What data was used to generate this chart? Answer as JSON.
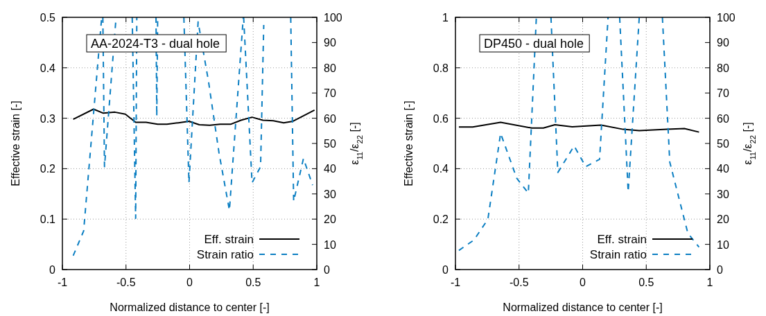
{
  "chart_data": [
    {
      "type": "line",
      "title": "AA-2024-T3 - dual hole",
      "xlabel": "Normalized distance to center [-]",
      "ylabel": "Effective strain [-]",
      "y2label": "ε$_{11}$/ε$_{22}$ [-]",
      "xlim": [
        -1,
        1
      ],
      "xticks": [
        -1,
        -0.5,
        0,
        0.5,
        1
      ],
      "ylim": [
        0,
        0.5
      ],
      "yticks": [
        0,
        0.1,
        0.2,
        0.3,
        0.4,
        0.5
      ],
      "y2lim": [
        0,
        100
      ],
      "y2ticks": [
        0,
        10,
        20,
        30,
        40,
        50,
        60,
        70,
        80,
        90,
        100
      ],
      "grid": true,
      "legend": "bottom right",
      "series": [
        {
          "name": "Eff. strain",
          "color": "#000000",
          "line_style": "solid",
          "x": [
            -0.915,
            -0.755,
            -0.678,
            -0.587,
            -0.505,
            -0.424,
            -0.342,
            -0.251,
            -0.178,
            -0.087,
            -0.005,
            0.076,
            0.158,
            0.24,
            0.322,
            0.404,
            0.491,
            0.576,
            0.658,
            0.74,
            0.813,
            0.982
          ],
          "values": [
            0.298,
            0.318,
            0.31,
            0.312,
            0.308,
            0.292,
            0.292,
            0.288,
            0.288,
            0.291,
            0.294,
            0.287,
            0.286,
            0.288,
            0.288,
            0.296,
            0.302,
            0.296,
            0.295,
            0.291,
            0.294,
            0.316
          ]
        },
        {
          "name": "Strain ratio",
          "color": "#0a7ec2",
          "line_style": "dashed",
          "axis": "y2",
          "x": [
            -0.915,
            -0.833,
            -0.691,
            -0.686,
            -0.682,
            -0.669,
            -0.578,
            -0.51,
            -0.451,
            -0.424,
            -0.415,
            -0.34,
            -0.264,
            -0.258,
            -0.251,
            -0.15,
            -0.045,
            -0.005,
            0.067,
            0.149,
            0.231,
            0.313,
            0.422,
            0.423,
            0.425,
            0.491,
            0.558,
            0.583,
            0.7,
            0.795,
            0.818,
            0.895,
            0.967
          ],
          "values": [
            5.5,
            15.3,
            100,
            null,
            100,
            40.8,
            100,
            null,
            100,
            20.3,
            100,
            null,
            100,
            60.8,
            100,
            null,
            100,
            34.4,
            98.2,
            74.5,
            46.3,
            23.5,
            100,
            null,
            100,
            34.4,
            40.8,
            97,
            null,
            100,
            27.1,
            44,
            33.5
          ]
        }
      ]
    },
    {
      "type": "line",
      "title": "DP450 - dual hole",
      "xlabel": "Normalized distance to center [-]",
      "ylabel": "Effective strain [-]",
      "y2label": "ε$_{11}$/ε$_{22}$ [-]",
      "xlim": [
        -1,
        1
      ],
      "xticks": [
        -1,
        -0.5,
        0,
        0.5,
        1
      ],
      "ylim": [
        0,
        1
      ],
      "yticks": [
        0,
        0.2,
        0.4,
        0.6,
        0.8,
        1
      ],
      "y2lim": [
        0,
        100
      ],
      "y2ticks": [
        0,
        10,
        20,
        30,
        40,
        50,
        60,
        70,
        80,
        90,
        100
      ],
      "grid": true,
      "legend": "bottom right",
      "series": [
        {
          "name": "Eff. strain",
          "color": "#000000",
          "line_style": "solid",
          "x": [
            -0.973,
            -0.864,
            -0.645,
            -0.4,
            -0.309,
            -0.218,
            -0.082,
            0.145,
            0.318,
            0.445,
            0.664,
            0.8,
            0.915
          ],
          "values": [
            0.565,
            0.565,
            0.584,
            0.561,
            0.561,
            0.574,
            0.566,
            0.573,
            0.556,
            0.551,
            0.556,
            0.559,
            0.545
          ]
        },
        {
          "name": "Strain ratio",
          "color": "#0a7ec2",
          "line_style": "dashed",
          "axis": "y2",
          "x": [
            -0.973,
            -0.855,
            -0.745,
            -0.645,
            -0.518,
            -0.427,
            -0.364,
            -0.3,
            -0.249,
            -0.195,
            -0.067,
            0.024,
            0.133,
            0.2,
            0.25,
            0.291,
            0.358,
            0.445,
            0.54,
            0.627,
            0.685,
            0.827,
            0.915
          ],
          "values": [
            7.6,
            11.7,
            19.9,
            54,
            36.2,
            30.3,
            100,
            null,
            100,
            38.5,
            49,
            40.8,
            43.7,
            100,
            null,
            100,
            30.8,
            100,
            null,
            100,
            42.6,
            14.4,
            8.9
          ]
        }
      ]
    }
  ]
}
